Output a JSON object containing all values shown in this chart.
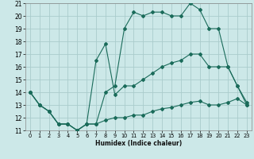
{
  "xlabel": "Humidex (Indice chaleur)",
  "bg_color": "#cce8e8",
  "grid_color": "#aacccc",
  "line_color": "#1a6b5a",
  "xlim": [
    -0.5,
    23.5
  ],
  "ylim": [
    11,
    21
  ],
  "xticks": [
    0,
    1,
    2,
    3,
    4,
    5,
    6,
    7,
    8,
    9,
    10,
    11,
    12,
    13,
    14,
    15,
    16,
    17,
    18,
    19,
    20,
    21,
    22,
    23
  ],
  "yticks": [
    11,
    12,
    13,
    14,
    15,
    16,
    17,
    18,
    19,
    20,
    21
  ],
  "line1_x": [
    0,
    1,
    2,
    3,
    4,
    5,
    6,
    7,
    8,
    9,
    10,
    11,
    12,
    13,
    14,
    15,
    16,
    17,
    18,
    19,
    20,
    21,
    22,
    23
  ],
  "line1_y": [
    14,
    13,
    12.5,
    11.5,
    11.5,
    11,
    11.5,
    11.5,
    14,
    14.5,
    19,
    20.3,
    20,
    20.3,
    20.3,
    20,
    20,
    21,
    20.5,
    19,
    19,
    16,
    14.5,
    13
  ],
  "line2_x": [
    0,
    1,
    2,
    3,
    4,
    5,
    6,
    7,
    8,
    9,
    10,
    11,
    12,
    13,
    14,
    15,
    16,
    17,
    18,
    19,
    20,
    21,
    22,
    23
  ],
  "line2_y": [
    14,
    13,
    12.5,
    11.5,
    11.5,
    11,
    11.5,
    16.5,
    17.8,
    13.8,
    14.5,
    14.5,
    15,
    15.5,
    16,
    16.3,
    16.5,
    17,
    17,
    16,
    16,
    16,
    14.5,
    13.2
  ],
  "line3_x": [
    0,
    1,
    2,
    3,
    4,
    5,
    6,
    7,
    8,
    9,
    10,
    11,
    12,
    13,
    14,
    15,
    16,
    17,
    18,
    19,
    20,
    21,
    22,
    23
  ],
  "line3_y": [
    14,
    13,
    12.5,
    11.5,
    11.5,
    11,
    11.5,
    11.5,
    11.8,
    12,
    12,
    12.2,
    12.2,
    12.5,
    12.7,
    12.8,
    13,
    13.2,
    13.3,
    13,
    13,
    13.2,
    13.5,
    13
  ]
}
